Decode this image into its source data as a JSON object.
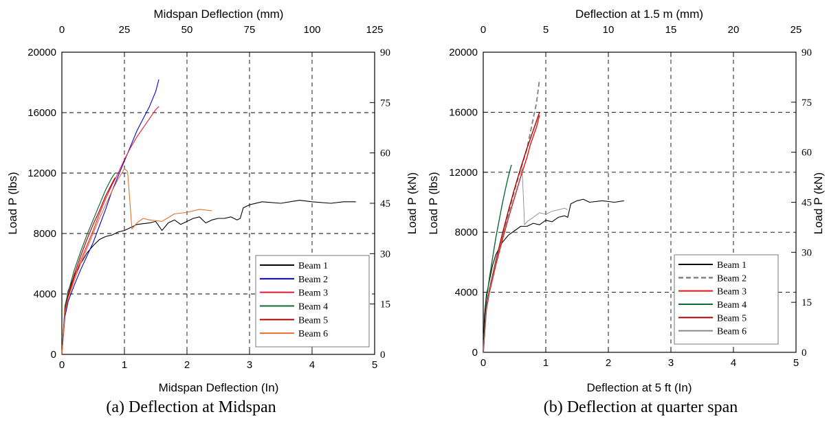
{
  "chart_data": [
    {
      "type": "line",
      "caption": "(a) Deflection at Midspan",
      "xlabel_bottom": "Midspan Deflection (In)",
      "xlabel_top": "Midspan Deflection (mm)",
      "ylabel_left": "Load P (lbs)",
      "ylabel_right": "Load P (kN)",
      "xlim": [
        0,
        5
      ],
      "ylim": [
        0,
        20000
      ],
      "xlim_top": [
        0,
        125
      ],
      "ylim_right": [
        0,
        90
      ],
      "x_ticks": [
        "0",
        "1",
        "2",
        "3",
        "4",
        "5"
      ],
      "y_ticks": [
        "0",
        "4000",
        "8000",
        "12000",
        "16000",
        "20000"
      ],
      "x_ticks_top": [
        "0",
        "25",
        "50",
        "75",
        "100",
        "125"
      ],
      "y_ticks_right": [
        "0",
        "15",
        "30",
        "45",
        "60",
        "75",
        "90"
      ],
      "grid": true,
      "legend_position": "bottom-right",
      "series": [
        {
          "name": "Beam 1",
          "color": "#000000",
          "width": 1.1,
          "dash": "",
          "x": [
            0,
            0.05,
            0.1,
            0.2,
            0.3,
            0.4,
            0.5,
            0.6,
            0.7,
            0.8,
            0.9,
            1.0,
            1.1,
            1.2,
            1.4,
            1.5,
            1.6,
            1.7,
            1.8,
            1.9,
            2.0,
            2.1,
            2.2,
            2.3,
            2.4,
            2.5,
            2.6,
            2.7,
            2.8,
            2.85,
            2.9,
            3.0,
            3.2,
            3.5,
            3.8,
            4.0,
            4.3,
            4.5,
            4.7
          ],
          "y": [
            0,
            3000,
            4200,
            5200,
            6000,
            6700,
            7200,
            7600,
            7800,
            7900,
            8100,
            8200,
            8400,
            8600,
            8700,
            8800,
            8200,
            8700,
            8900,
            8600,
            8800,
            9000,
            9100,
            8700,
            8900,
            9000,
            9000,
            9100,
            8900,
            9000,
            9700,
            9900,
            10100,
            10000,
            10200,
            10100,
            10000,
            10100,
            10100
          ]
        },
        {
          "name": "Beam 2",
          "color": "#0000dd",
          "width": 1.1,
          "dash": "",
          "x": [
            0,
            0.05,
            0.1,
            0.2,
            0.3,
            0.4,
            0.5,
            0.6,
            0.7,
            0.8,
            0.9,
            1.0,
            1.1,
            1.2,
            1.3,
            1.4,
            1.5,
            1.55
          ],
          "y": [
            0,
            2500,
            3500,
            4600,
            5600,
            6500,
            7400,
            8500,
            9600,
            10800,
            11800,
            12800,
            13800,
            14800,
            15600,
            16400,
            17400,
            18200
          ]
        },
        {
          "name": "Beam 3",
          "color": "#ee1133",
          "width": 1.1,
          "dash": "",
          "x": [
            0,
            0.05,
            0.1,
            0.2,
            0.3,
            0.4,
            0.5,
            0.6,
            0.7,
            0.8,
            0.9,
            1.0,
            1.1,
            1.2,
            1.3,
            1.4,
            1.5,
            1.55
          ],
          "y": [
            0,
            2700,
            3800,
            5100,
            6200,
            7200,
            8200,
            9300,
            10300,
            11200,
            12000,
            12900,
            13700,
            14400,
            15000,
            15600,
            16200,
            16400
          ]
        },
        {
          "name": "Beam 4",
          "color": "#0b6b2e",
          "width": 1.2,
          "dash": "",
          "x": [
            0,
            0.05,
            0.1,
            0.2,
            0.3,
            0.4,
            0.5,
            0.6,
            0.7,
            0.8,
            0.85
          ],
          "y": [
            0,
            3200,
            4100,
            5600,
            6800,
            7900,
            8900,
            9900,
            10900,
            11700,
            12000
          ]
        },
        {
          "name": "Beam 5",
          "color": "#aa0000",
          "width": 1.2,
          "dash": "",
          "x": [
            0,
            0.05,
            0.1,
            0.2,
            0.3,
            0.4,
            0.5,
            0.6,
            0.7,
            0.8,
            0.85
          ],
          "y": [
            0,
            3000,
            3900,
            5300,
            6500,
            7600,
            8600,
            9500,
            10500,
            11300,
            11700
          ]
        },
        {
          "name": "Beam 6",
          "color": "#e07030",
          "width": 1.1,
          "dash": "",
          "x": [
            0,
            0.05,
            0.1,
            0.2,
            0.3,
            0.4,
            0.5,
            0.6,
            0.7,
            0.8,
            0.9,
            1.0,
            1.05,
            1.08,
            1.12,
            1.2,
            1.3,
            1.4,
            1.6,
            1.8,
            2.0,
            2.2,
            2.4
          ],
          "y": [
            0,
            2800,
            3700,
            4900,
            6000,
            7000,
            8000,
            9000,
            9900,
            10800,
            11600,
            12300,
            12100,
            10500,
            8300,
            8700,
            9000,
            8900,
            8800,
            9300,
            9400,
            9600,
            9500
          ]
        }
      ]
    },
    {
      "type": "line",
      "caption": "(b) Deflection at quarter span",
      "xlabel_bottom": "Deflection at 5 ft (In)",
      "xlabel_top": "Deflection at 1.5 m (mm)",
      "ylabel_left": "Load P (lbs)",
      "ylabel_right": "Load P (kN)",
      "xlim": [
        0,
        5
      ],
      "ylim": [
        0,
        20000
      ],
      "xlim_top": [
        0,
        25
      ],
      "ylim_right": [
        0,
        90
      ],
      "x_ticks": [
        "0",
        "1",
        "2",
        "3",
        "4",
        "5"
      ],
      "y_ticks": [
        "0",
        "4000",
        "8000",
        "12000",
        "16000",
        "20000"
      ],
      "x_ticks_top": [
        "0",
        "5",
        "10",
        "15",
        "20",
        "25"
      ],
      "y_ticks_right": [
        "0",
        "15",
        "30",
        "45",
        "60",
        "75",
        "90"
      ],
      "grid": true,
      "legend_position": "bottom-right",
      "series": [
        {
          "name": "Beam 1",
          "color": "#000000",
          "width": 1.1,
          "dash": "",
          "x": [
            0,
            0.02,
            0.05,
            0.1,
            0.15,
            0.2,
            0.3,
            0.4,
            0.5,
            0.6,
            0.7,
            0.8,
            0.9,
            1.0,
            1.1,
            1.2,
            1.3,
            1.35,
            1.4,
            1.5,
            1.6,
            1.7,
            1.9,
            2.1,
            2.25
          ],
          "y": [
            0,
            2500,
            3800,
            4800,
            5800,
            6500,
            7300,
            7800,
            8100,
            8400,
            8400,
            8600,
            8500,
            8800,
            8700,
            9000,
            9100,
            9000,
            9900,
            10100,
            10200,
            10000,
            10100,
            10000,
            10100
          ]
        },
        {
          "name": "Beam 2",
          "color": "#888888",
          "width": 2.0,
          "dash": "7 4",
          "x": [
            0,
            0.05,
            0.1,
            0.2,
            0.3,
            0.4,
            0.5,
            0.6,
            0.7,
            0.75,
            0.8,
            0.85,
            0.9
          ],
          "y": [
            0,
            3000,
            4200,
            6000,
            7600,
            9200,
            10800,
            12200,
            13600,
            14600,
            15600,
            16600,
            18200
          ]
        },
        {
          "name": "Beam 3",
          "color": "#ee1111",
          "width": 1.4,
          "dash": "",
          "x": [
            0,
            0.05,
            0.1,
            0.2,
            0.3,
            0.4,
            0.5,
            0.6,
            0.7,
            0.75,
            0.8,
            0.85,
            0.9
          ],
          "y": [
            0,
            2800,
            4000,
            5800,
            7400,
            8900,
            10300,
            11700,
            13000,
            13800,
            14400,
            15000,
            15800
          ]
        },
        {
          "name": "Beam 4",
          "color": "#0b6b2e",
          "width": 1.4,
          "dash": "",
          "x": [
            0,
            0.05,
            0.1,
            0.2,
            0.3,
            0.35,
            0.4,
            0.45
          ],
          "y": [
            0,
            3500,
            5000,
            7600,
            9800,
            10800,
            11700,
            12500
          ]
        },
        {
          "name": "Beam 5",
          "color": "#aa0000",
          "width": 1.4,
          "dash": "",
          "x": [
            0,
            0.05,
            0.1,
            0.2,
            0.3,
            0.4,
            0.5,
            0.6,
            0.7,
            0.8,
            0.9
          ],
          "y": [
            0,
            3000,
            4200,
            6100,
            7800,
            9400,
            10900,
            12300,
            13600,
            14800,
            16000
          ]
        },
        {
          "name": "Beam 6",
          "color": "#888888",
          "width": 0.9,
          "dash": "",
          "x": [
            0,
            0.05,
            0.1,
            0.2,
            0.3,
            0.4,
            0.5,
            0.6,
            0.62,
            0.63,
            0.66,
            0.7,
            0.8,
            0.9,
            1.0,
            1.1,
            1.2,
            1.3,
            1.35
          ],
          "y": [
            0,
            2900,
            4100,
            6000,
            7600,
            9000,
            10400,
            11800,
            12300,
            11500,
            8500,
            8700,
            9000,
            9300,
            9200,
            9400,
            9500,
            9600,
            9500
          ]
        }
      ]
    }
  ]
}
